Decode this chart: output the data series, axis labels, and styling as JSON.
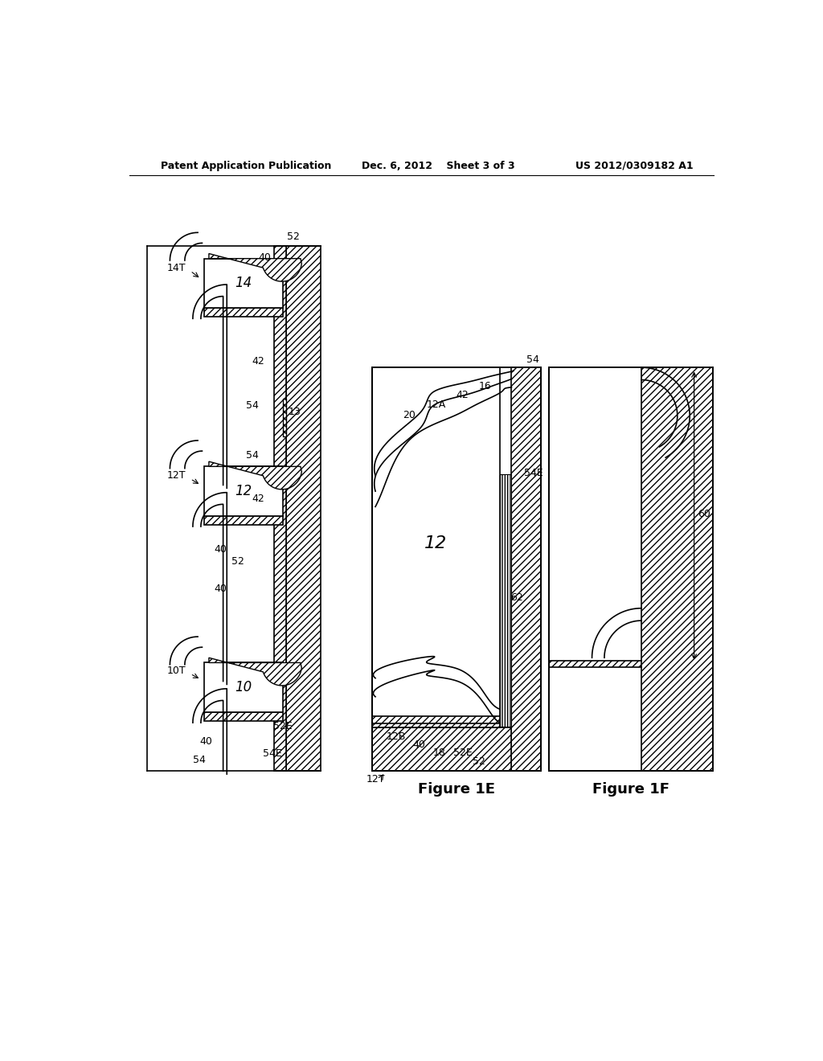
{
  "title_left": "Patent Application Publication",
  "title_center": "Dec. 6, 2012    Sheet 3 of 3",
  "title_right": "US 2012/0309182 A1",
  "fig1e_label": "Figure 1E",
  "fig1f_label": "Figure 1F",
  "bg_color": "#ffffff",
  "line_color": "#000000"
}
